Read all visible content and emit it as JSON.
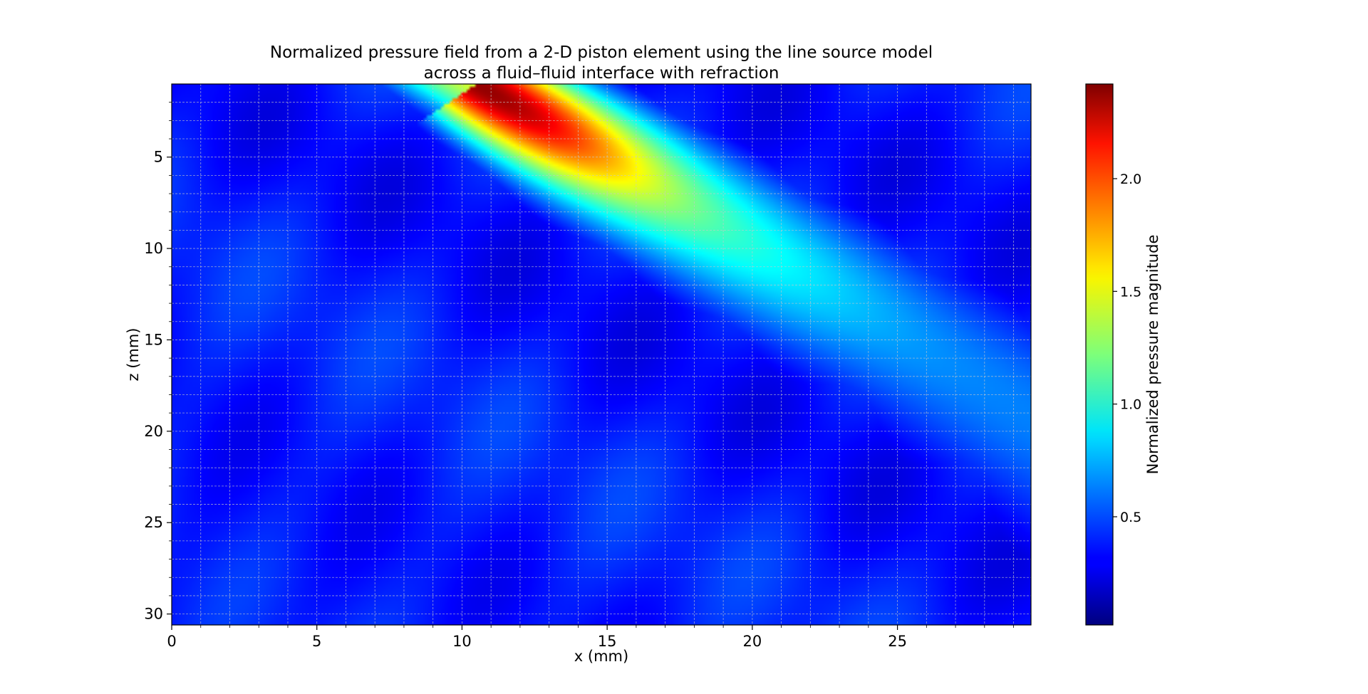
{
  "chart_data": {
    "type": "heatmap",
    "title_lines": [
      "Normalized pressure field from a 2-D piston element using the line source model",
      "across a fluid–fluid interface with refraction"
    ],
    "xlabel": "x (mm)",
    "ylabel": "z (mm)",
    "xlim": [
      0,
      29.6
    ],
    "ylim": [
      30.6,
      1
    ],
    "y_inverted": true,
    "x_ticks": [
      0,
      5,
      10,
      15,
      20,
      25
    ],
    "x_tick_labels": [
      "0",
      "5",
      "10",
      "15",
      "20",
      "25"
    ],
    "y_ticks": [
      5,
      10,
      15,
      20,
      25,
      30
    ],
    "y_tick_labels": [
      "5",
      "10",
      "15",
      "20",
      "25",
      "30"
    ],
    "grid": true,
    "minor_grid": true,
    "colormap": "jet",
    "colorbar": {
      "label": "Normalized pressure magnitude",
      "range": [
        0.02,
        2.42
      ],
      "ticks": [
        0.5,
        1.0,
        1.5,
        2.0
      ],
      "tick_labels": [
        "0.5",
        "1.0",
        "1.5",
        "2.0"
      ]
    },
    "beam": {
      "description_values": "main lobe peak ~2.4 near x=10.5 mm at the interface, steering toward x=30 mm, z=20 mm",
      "origin_x": 10.5,
      "origin_z": 1,
      "direction_dx_per_dz": 1.05,
      "peak": 2.42
    }
  }
}
